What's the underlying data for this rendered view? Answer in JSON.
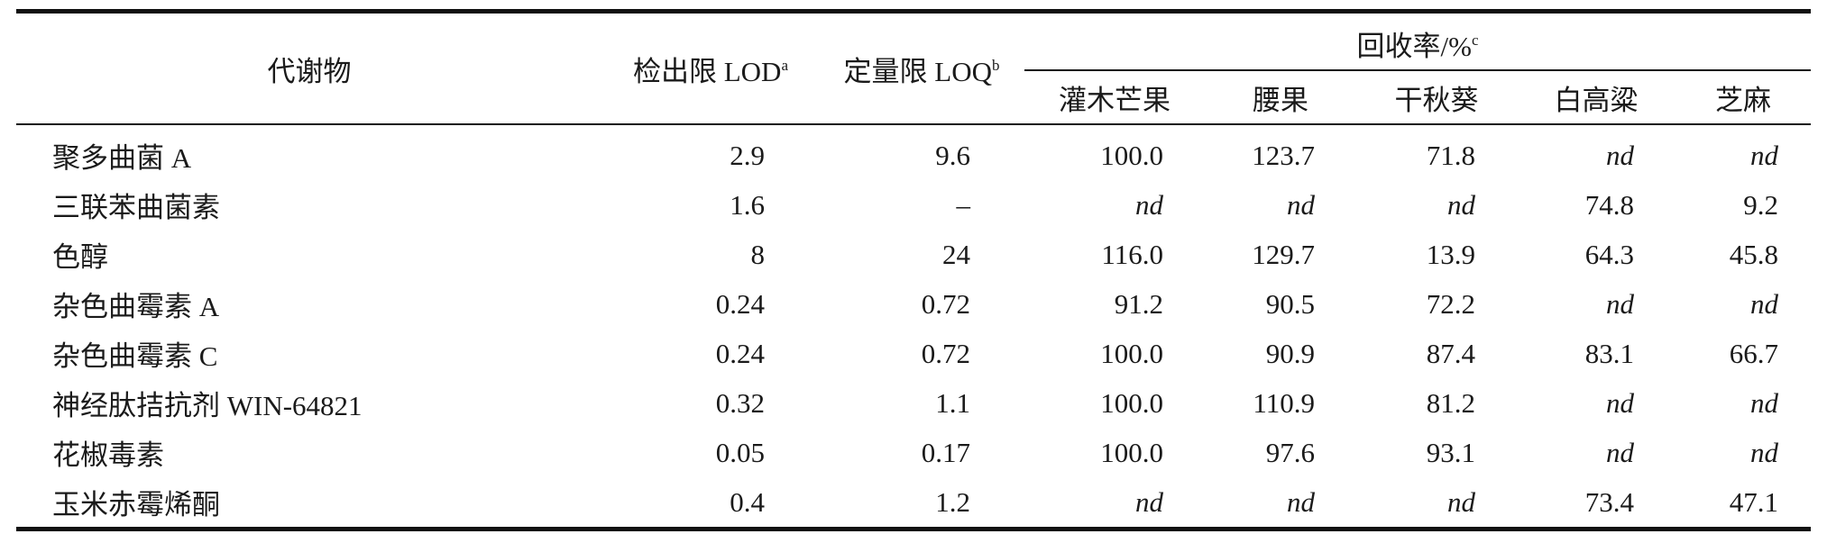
{
  "table": {
    "header": {
      "metabolite": "代谢物",
      "lod": "检出限 LOD",
      "lod_sup": "a",
      "loq": "定量限 LOQ",
      "loq_sup": "b",
      "recovery": "回收率/%",
      "recovery_sup": "c",
      "samples": [
        "灌木芒果",
        "腰果",
        "干秋葵",
        "白高粱",
        "芝麻"
      ]
    },
    "rows": [
      {
        "name": "聚多曲菌 A",
        "lod": "2.9",
        "loq": "9.6",
        "values": [
          "100.0",
          "123.7",
          "71.8",
          "nd",
          "nd"
        ]
      },
      {
        "name": "三联苯曲菌素",
        "lod": "1.6",
        "loq": "–",
        "values": [
          "nd",
          "nd",
          "nd",
          "74.8",
          "9.2"
        ]
      },
      {
        "name": "色醇",
        "lod": "8",
        "loq": "24",
        "values": [
          "116.0",
          "129.7",
          "13.9",
          "64.3",
          "45.8"
        ]
      },
      {
        "name": "杂色曲霉素 A",
        "lod": "0.24",
        "loq": "0.72",
        "values": [
          "91.2",
          "90.5",
          "72.2",
          "nd",
          "nd"
        ]
      },
      {
        "name": "杂色曲霉素 C",
        "lod": "0.24",
        "loq": "0.72",
        "values": [
          "100.0",
          "90.9",
          "87.4",
          "83.1",
          "66.7"
        ]
      },
      {
        "name": "神经肽拮抗剂 WIN-64821",
        "lod": "0.32",
        "loq": "1.1",
        "values": [
          "100.0",
          "110.9",
          "81.2",
          "nd",
          "nd"
        ]
      },
      {
        "name": "花椒毒素",
        "lod": "0.05",
        "loq": "0.17",
        "values": [
          "100.0",
          "97.6",
          "93.1",
          "nd",
          "nd"
        ]
      },
      {
        "name": "玉米赤霉烯酮",
        "lod": "0.4",
        "loq": "1.2",
        "values": [
          "nd",
          "nd",
          "nd",
          "73.4",
          "47.1"
        ]
      }
    ]
  }
}
